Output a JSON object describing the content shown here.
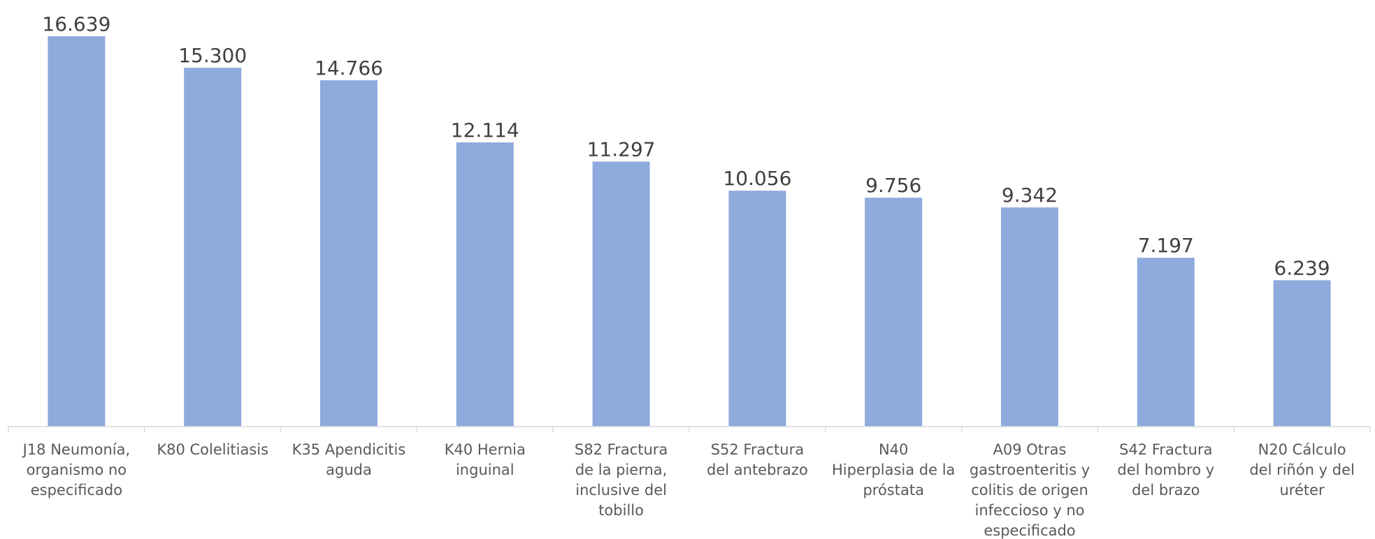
{
  "chart_data": {
    "type": "bar",
    "categories": [
      [
        "J18 Neumonía,",
        "organismo no",
        "especificado"
      ],
      [
        "K80 Colelitiasis"
      ],
      [
        "K35 Apendicitis",
        "aguda"
      ],
      [
        "K40 Hernia",
        "inguinal"
      ],
      [
        "S82 Fractura",
        "de la pierna,",
        "inclusive del",
        "tobillo"
      ],
      [
        "S52 Fractura",
        "del antebrazo"
      ],
      [
        "N40",
        "Hiperplasia de la",
        "próstata"
      ],
      [
        "A09 Otras",
        "gastroenteritis y",
        "colitis de origen",
        "infeccioso y no",
        "especificado"
      ],
      [
        "S42 Fractura",
        "del hombro y",
        "del brazo"
      ],
      [
        "N20 Cálculo",
        "del riñón y del",
        "uréter"
      ]
    ],
    "values": [
      16639,
      15300,
      14766,
      12114,
      11297,
      10056,
      9756,
      9342,
      7197,
      6239
    ],
    "value_labels": [
      "16.639",
      "15.300",
      "14.766",
      "12.114",
      "11.297",
      "10.056",
      "9.756",
      "9.342",
      "7.197",
      "6.239"
    ],
    "ylim": [
      0,
      17500
    ],
    "grid": false,
    "legend": "none",
    "bar_color": "#8faadc",
    "axis_color": "#d9d9d9"
  }
}
